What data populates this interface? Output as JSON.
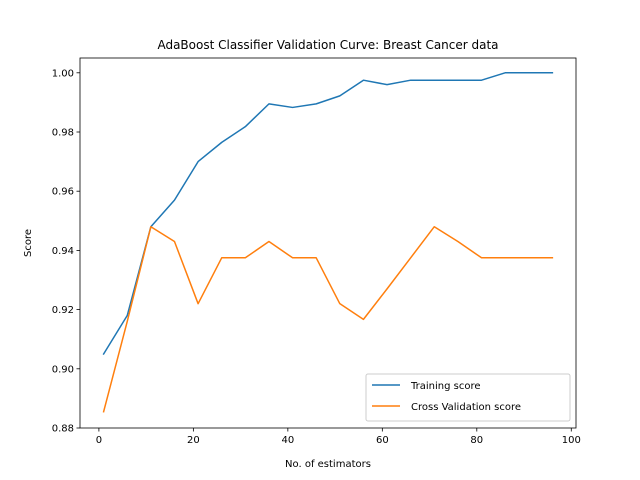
{
  "chart_data": {
    "type": "line",
    "title": "AdaBoost Classifier Validation Curve: Breast Cancer data",
    "xlabel": "No. of estimators",
    "ylabel": "Score",
    "xlim": [
      -4,
      101
    ],
    "ylim": [
      0.88,
      1.005
    ],
    "xticks": [
      0,
      20,
      40,
      60,
      80,
      100
    ],
    "xtick_labels": [
      "0",
      "20",
      "40",
      "60",
      "80",
      "100"
    ],
    "yticks": [
      0.88,
      0.9,
      0.92,
      0.94,
      0.96,
      0.98,
      1.0
    ],
    "ytick_labels": [
      "0.88",
      "0.90",
      "0.92",
      "0.94",
      "0.96",
      "0.98",
      "1.00"
    ],
    "grid": false,
    "legend_position": "lower-right",
    "x": [
      1,
      6,
      11,
      16,
      21,
      26,
      31,
      36,
      41,
      46,
      51,
      56,
      61,
      66,
      71,
      76,
      81,
      86,
      91,
      96
    ],
    "series": [
      {
        "name": "Training score",
        "color": "#1f77b4",
        "values": [
          0.905,
          0.918,
          0.948,
          0.957,
          0.97,
          0.9765,
          0.9818,
          0.9895,
          0.9883,
          0.9895,
          0.9922,
          0.9975,
          0.996,
          0.9975,
          0.9975,
          0.9975,
          0.9975,
          1.0,
          1.0,
          1.0
        ]
      },
      {
        "name": "Cross Validation score",
        "color": "#ff7f0e",
        "values": [
          0.8855,
          0.916,
          0.948,
          0.943,
          0.922,
          0.9375,
          0.9375,
          0.943,
          0.9375,
          0.9375,
          0.922,
          0.9167,
          0.927,
          0.9375,
          0.948,
          0.943,
          0.9375,
          0.9375,
          0.9375,
          0.9375
        ]
      }
    ]
  }
}
